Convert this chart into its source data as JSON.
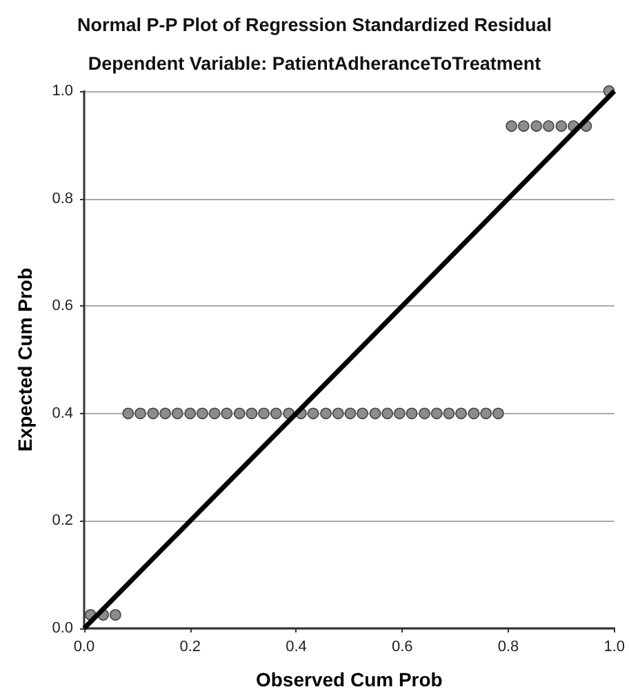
{
  "chart_data": {
    "type": "scatter",
    "title": "Normal P-P Plot of Regression Standardized Residual",
    "subtitle": "Dependent Variable: PatientAdheranceToTreatment",
    "xlabel": "Observed Cum Prob",
    "ylabel": "Expected Cum Prob",
    "xlim": [
      0,
      1
    ],
    "ylim": [
      0,
      1
    ],
    "xticks": [
      {
        "value": 0,
        "label": "0.0"
      },
      0.2,
      0.4,
      0.6,
      0.8,
      {
        "value": 1,
        "label": "1.0"
      }
    ],
    "yticks": [
      {
        "value": 0,
        "label": "0.0"
      },
      0.2,
      0.4,
      0.6,
      0.8,
      {
        "value": 1,
        "label": "1.0"
      }
    ],
    "grid": "y",
    "series": [
      {
        "color": "#8c8c8c",
        "marker": "circle",
        "x": [
          0.012,
          0.036,
          0.059,
          0.083,
          0.106,
          0.13,
          0.153,
          0.176,
          0.2,
          0.223,
          0.246,
          0.269,
          0.293,
          0.316,
          0.339,
          0.362,
          0.386,
          0.409,
          0.432,
          0.456,
          0.479,
          0.502,
          0.525,
          0.549,
          0.572,
          0.595,
          0.618,
          0.642,
          0.665,
          0.688,
          0.711,
          0.735,
          0.758,
          0.781,
          0.806,
          0.829,
          0.853,
          0.876,
          0.9,
          0.923,
          0.947,
          0.99
        ],
        "values": [
          0.025,
          0.025,
          0.025,
          0.4,
          0.4,
          0.4,
          0.4,
          0.4,
          0.4,
          0.4,
          0.4,
          0.4,
          0.4,
          0.4,
          0.4,
          0.4,
          0.4,
          0.4,
          0.4,
          0.4,
          0.4,
          0.4,
          0.4,
          0.4,
          0.4,
          0.4,
          0.4,
          0.4,
          0.4,
          0.4,
          0.4,
          0.4,
          0.4,
          0.4,
          0.935,
          0.935,
          0.935,
          0.935,
          0.935,
          0.935,
          0.935,
          1.0
        ]
      },
      {
        "type": "line",
        "color": "#000000",
        "marker": "none",
        "line_style": "solid",
        "x": [
          0,
          1
        ],
        "values": [
          0,
          1
        ]
      }
    ]
  }
}
